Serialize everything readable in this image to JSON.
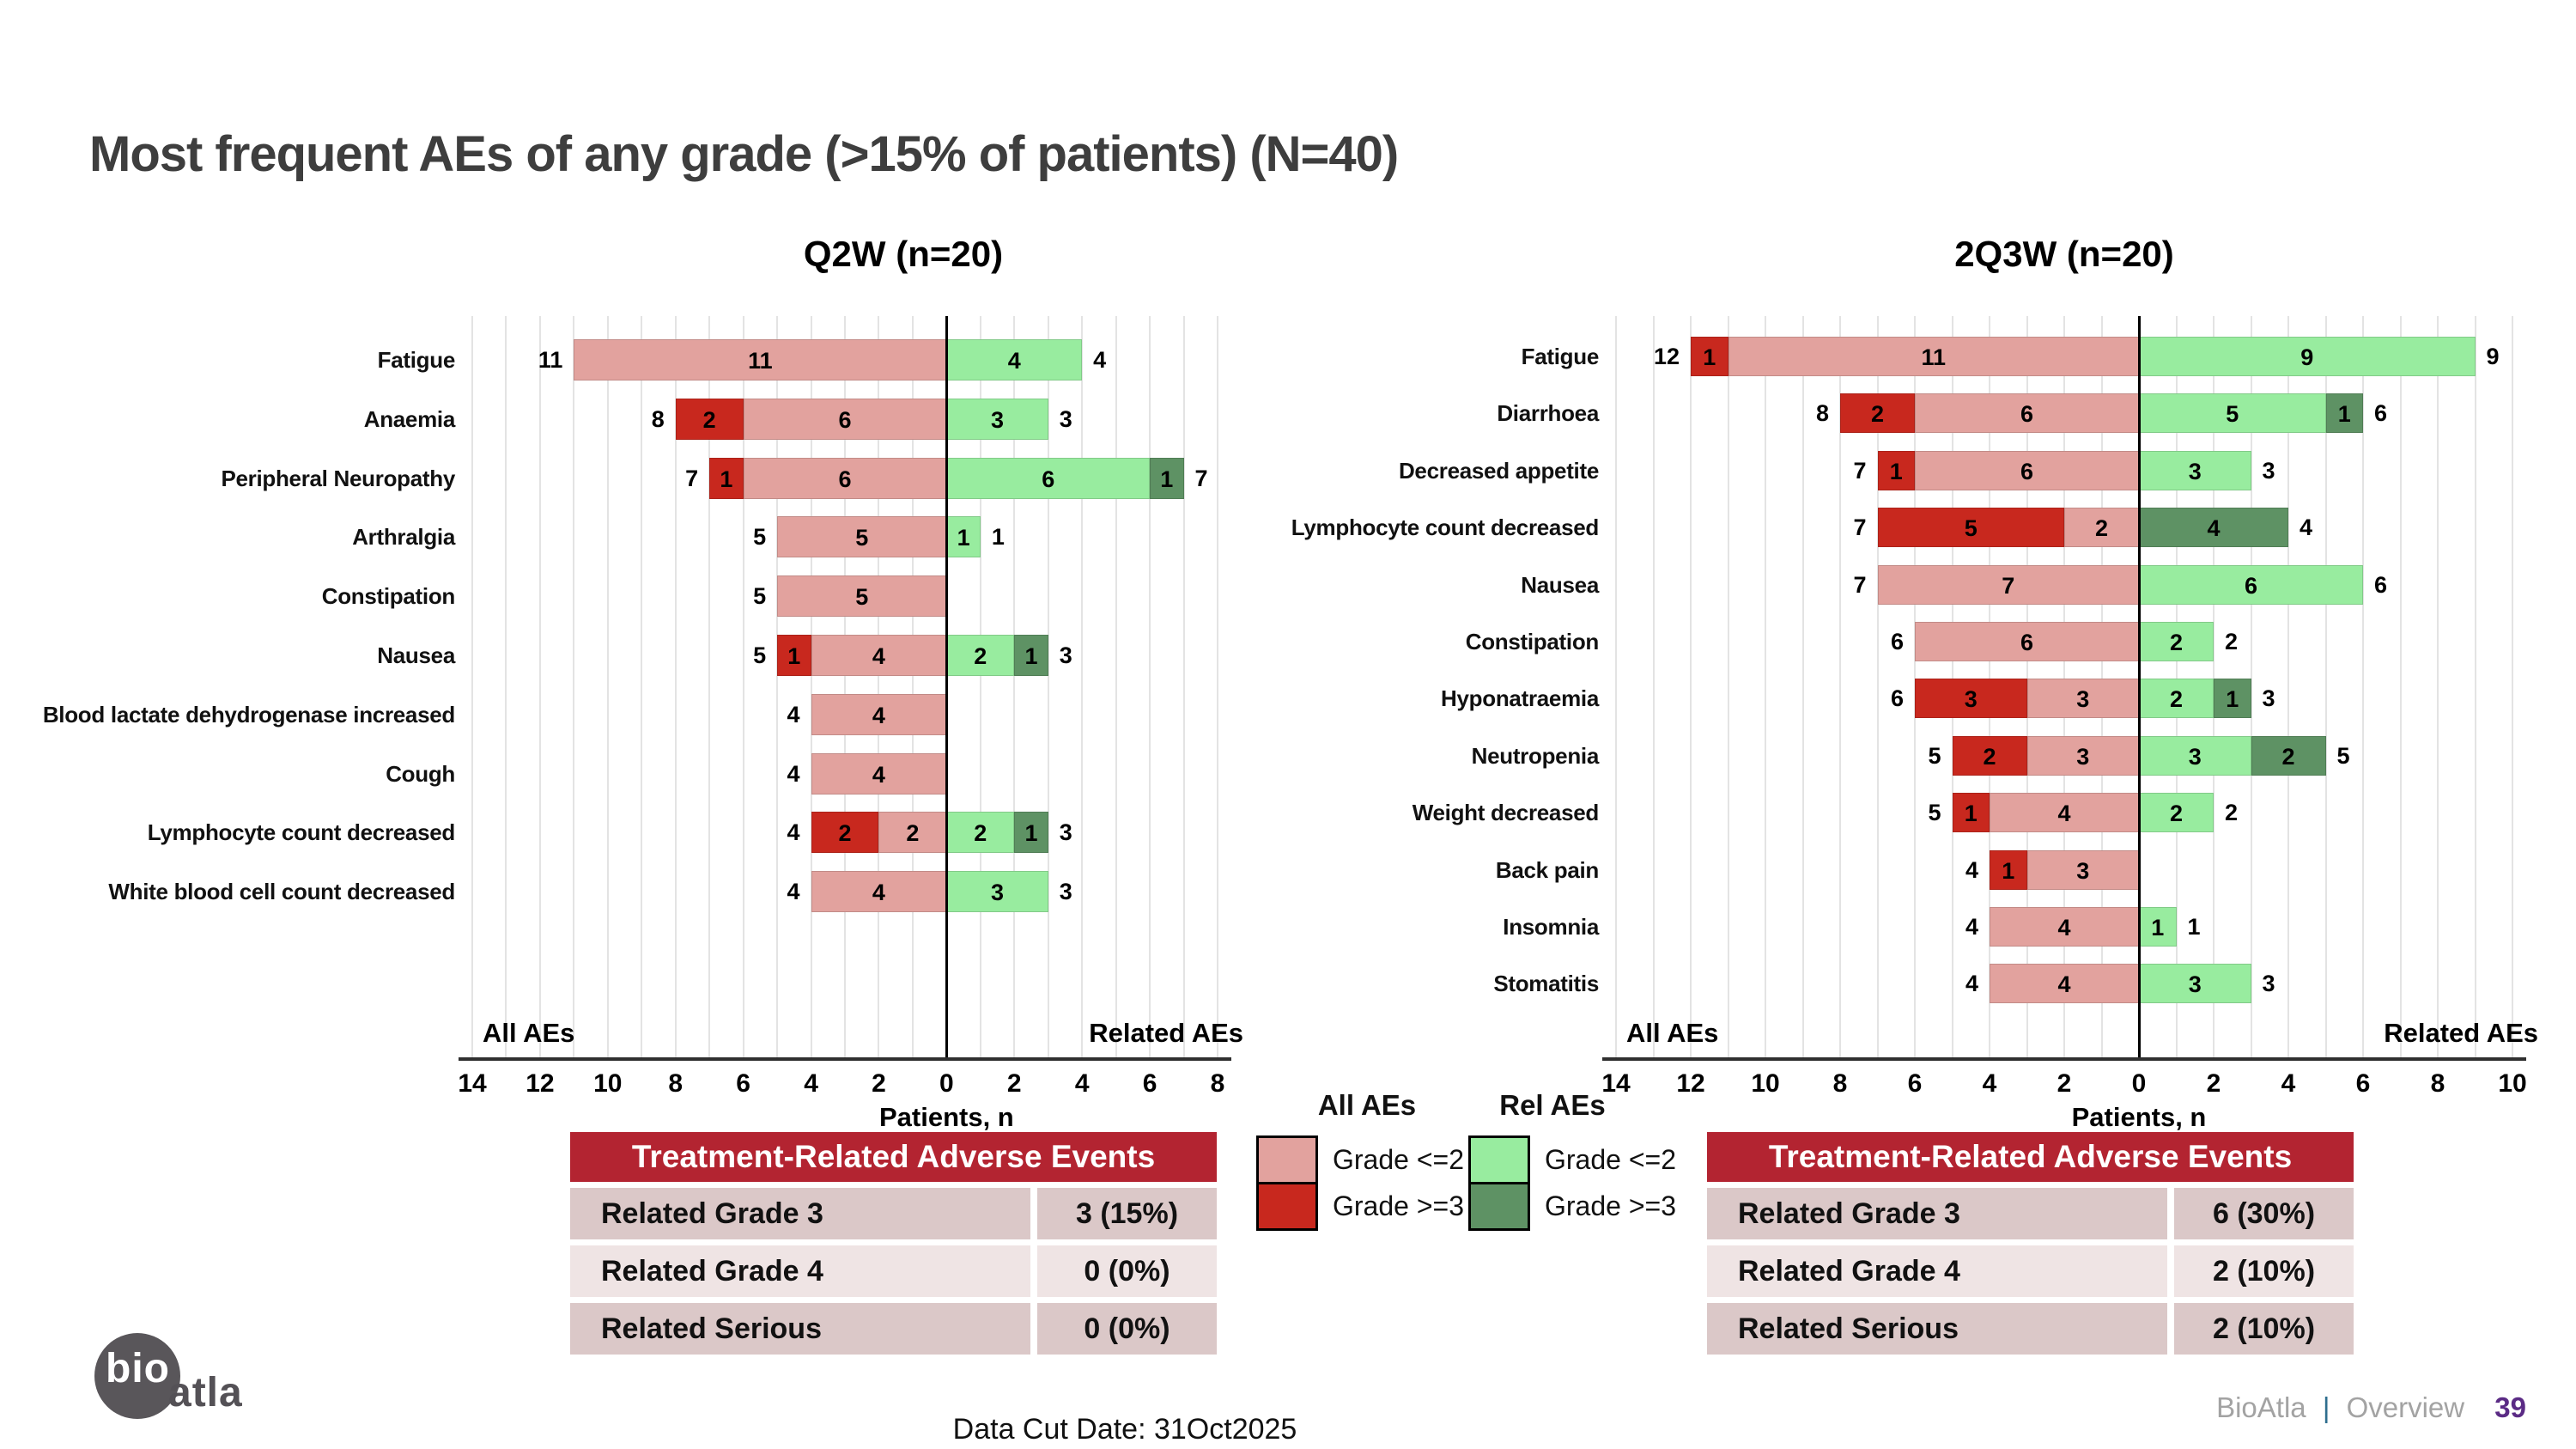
{
  "slide": {
    "title": "Most frequent AEs of any grade (>15% of patients) (N=40)",
    "footer": {
      "data_cut": "Data Cut Date: 31Oct2025",
      "brand": "BioAtla",
      "divider": "|",
      "section": "Overview",
      "page": "39",
      "logo_text_1": "bio",
      "logo_text_2": "atla"
    }
  },
  "colors": {
    "all_grade_le2": "#E2A29E",
    "all_grade_ge3": "#C8281E",
    "rel_grade_le2": "#98EC9F",
    "rel_grade_ge3": "#5E9264",
    "table_header_bg": "#B32431",
    "table_row_odd_bg": "#DBC8C8",
    "table_row_even_bg": "#EFE4E4",
    "title_text": "#3E3E3E",
    "page_number": "#5B2B85",
    "footer_gray": "#A3A3A3",
    "footer_divider_blue": "#2E6E8E",
    "logo_circle": "#59565A",
    "gridline": "#E3E3E3",
    "axis_line": "#2F2F2F"
  },
  "legend": {
    "groups": [
      {
        "header": "All AEs",
        "items": [
          {
            "label": "Grade <=2",
            "color_key": "all_grade_le2"
          },
          {
            "label": "Grade >=3",
            "color_key": "all_grade_ge3"
          }
        ]
      },
      {
        "header": "Rel AEs",
        "items": [
          {
            "label": "Grade <=2",
            "color_key": "rel_grade_le2"
          },
          {
            "label": "Grade >=3",
            "color_key": "rel_grade_ge3"
          }
        ]
      }
    ]
  },
  "summary_tables": [
    {
      "header": "Treatment-Related Adverse Events",
      "rows": [
        {
          "label": "Related Grade 3",
          "value": "3 (15%)"
        },
        {
          "label": "Related Grade 4",
          "value": "0 (0%)"
        },
        {
          "label": "Related Serious",
          "value": "0 (0%)"
        }
      ]
    },
    {
      "header": "Treatment-Related Adverse Events",
      "rows": [
        {
          "label": "Related Grade 3",
          "value": "6 (30%)"
        },
        {
          "label": "Related Grade 4",
          "value": "2 (10%)"
        },
        {
          "label": "Related Serious",
          "value": "2 (10%)"
        }
      ]
    }
  ],
  "chart_data": [
    {
      "type": "bar",
      "variant": "diverging_stacked_tornado",
      "title": "Q2W (n=20)",
      "xlabel": "Patients, n",
      "zone_left_label": "All AEs",
      "zone_right_label": "Related AEs",
      "x_left_max": 14,
      "x_right_max": 8,
      "tick_labels": [
        "14",
        "12",
        "10",
        "8",
        "6",
        "4",
        "2",
        "0",
        "2",
        "4",
        "6",
        "8"
      ],
      "categories": [
        "Fatigue",
        "Anaemia",
        "Peripheral Neuropathy",
        "Arthralgia",
        "Constipation",
        "Nausea",
        "Blood lactate dehydrogenase increased",
        "Cough",
        "Lymphocyte count decreased",
        "White blood cell count decreased"
      ],
      "series": [
        {
          "name": "All AEs Grade >=3",
          "values": [
            0,
            2,
            1,
            0,
            0,
            1,
            0,
            0,
            2,
            0
          ]
        },
        {
          "name": "All AEs Grade <=2",
          "values": [
            11,
            6,
            6,
            5,
            5,
            4,
            4,
            4,
            2,
            4
          ]
        },
        {
          "name": "Related AEs Grade <=2",
          "values": [
            4,
            3,
            6,
            1,
            0,
            2,
            0,
            0,
            2,
            3
          ]
        },
        {
          "name": "Related AEs Grade >=3",
          "values": [
            0,
            0,
            1,
            0,
            0,
            1,
            0,
            0,
            1,
            0
          ]
        }
      ],
      "left_totals": [
        11,
        8,
        7,
        5,
        5,
        5,
        4,
        4,
        4,
        4
      ],
      "right_totals": [
        4,
        3,
        7,
        1,
        0,
        3,
        0,
        0,
        3,
        3
      ]
    },
    {
      "type": "bar",
      "variant": "diverging_stacked_tornado",
      "title": "2Q3W (n=20)",
      "xlabel": "Patients, n",
      "zone_left_label": "All AEs",
      "zone_right_label": "Related AEs",
      "x_left_max": 14,
      "x_right_max": 10,
      "tick_labels": [
        "14",
        "12",
        "10",
        "8",
        "6",
        "4",
        "2",
        "0",
        "2",
        "4",
        "6",
        "8",
        "10"
      ],
      "categories": [
        "Fatigue",
        "Diarrhoea",
        "Decreased appetite",
        "Lymphocyte count decreased",
        "Nausea",
        "Constipation",
        "Hyponatraemia",
        "Neutropenia",
        "Weight decreased",
        "Back pain",
        "Insomnia",
        "Stomatitis"
      ],
      "series": [
        {
          "name": "All AEs Grade >=3",
          "values": [
            1,
            2,
            1,
            5,
            0,
            0,
            3,
            2,
            1,
            1,
            0,
            0
          ]
        },
        {
          "name": "All AEs Grade <=2",
          "values": [
            11,
            6,
            6,
            2,
            7,
            6,
            3,
            3,
            4,
            3,
            4,
            4
          ]
        },
        {
          "name": "Related AEs Grade <=2",
          "values": [
            9,
            5,
            3,
            0,
            6,
            2,
            2,
            3,
            2,
            0,
            1,
            3
          ]
        },
        {
          "name": "Related AEs Grade >=3",
          "values": [
            0,
            1,
            0,
            4,
            0,
            0,
            1,
            2,
            0,
            0,
            0,
            0
          ]
        }
      ],
      "left_totals": [
        12,
        8,
        7,
        7,
        7,
        6,
        6,
        5,
        5,
        4,
        4,
        4
      ],
      "right_totals": [
        9,
        6,
        3,
        4,
        6,
        2,
        3,
        5,
        2,
        0,
        1,
        3
      ]
    }
  ]
}
